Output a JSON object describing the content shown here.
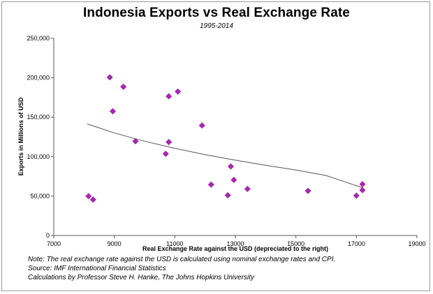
{
  "chart_data": {
    "type": "scatter",
    "title": "Indonesia Exports vs Real Exchange Rate",
    "subtitle": "1995-2014",
    "xlabel": "Real Exchange Rate against the USD (depreciated to the right)",
    "ylabel": "Exports in Millions of USD",
    "xlim": [
      7000,
      19000
    ],
    "ylim": [
      0,
      250000
    ],
    "xticks": [
      7000,
      9000,
      11000,
      13000,
      15000,
      17000,
      19000
    ],
    "yticks": [
      0,
      50000,
      100000,
      150000,
      200000,
      250000
    ],
    "xtick_labels": [
      "7000",
      "9000",
      "11000",
      "13000",
      "15000",
      "17000",
      "19000"
    ],
    "ytick_labels": [
      "0",
      "50,000",
      "100,000",
      "150,000",
      "200,000",
      "250,000"
    ],
    "grid": false,
    "legend": "none",
    "marker_color": "#b024b8",
    "trend_color": "#555555",
    "points": [
      {
        "x": 8150,
        "y": 49800
      },
      {
        "x": 8300,
        "y": 45500
      },
      {
        "x": 8850,
        "y": 200500
      },
      {
        "x": 8950,
        "y": 157500
      },
      {
        "x": 9300,
        "y": 188500
      },
      {
        "x": 9700,
        "y": 119500
      },
      {
        "x": 10700,
        "y": 103500
      },
      {
        "x": 10800,
        "y": 176500
      },
      {
        "x": 10800,
        "y": 118500
      },
      {
        "x": 11100,
        "y": 182500
      },
      {
        "x": 11900,
        "y": 139500
      },
      {
        "x": 12200,
        "y": 64500
      },
      {
        "x": 12750,
        "y": 51000
      },
      {
        "x": 12850,
        "y": 87500
      },
      {
        "x": 12950,
        "y": 70500
      },
      {
        "x": 13400,
        "y": 59000
      },
      {
        "x": 15400,
        "y": 56500
      },
      {
        "x": 17000,
        "y": 50500
      },
      {
        "x": 17200,
        "y": 57500
      },
      {
        "x": 17200,
        "y": 65000
      }
    ],
    "trendline": {
      "type": "power",
      "x": [
        8100,
        9000,
        10000,
        11000,
        12000,
        13000,
        14000,
        15000,
        16000,
        17200
      ],
      "y": [
        141500,
        130000,
        119500,
        110500,
        102500,
        95500,
        89000,
        83000,
        76000,
        60500
      ]
    }
  },
  "notes": [
    "Note: The real exchange rate against the USD is calculated using nominal exchange rates and CPI.",
    "Source: IMF International Financial Statistics",
    "Calculations by Professor Steve H. Hanke, The Johns Hopkins University"
  ]
}
